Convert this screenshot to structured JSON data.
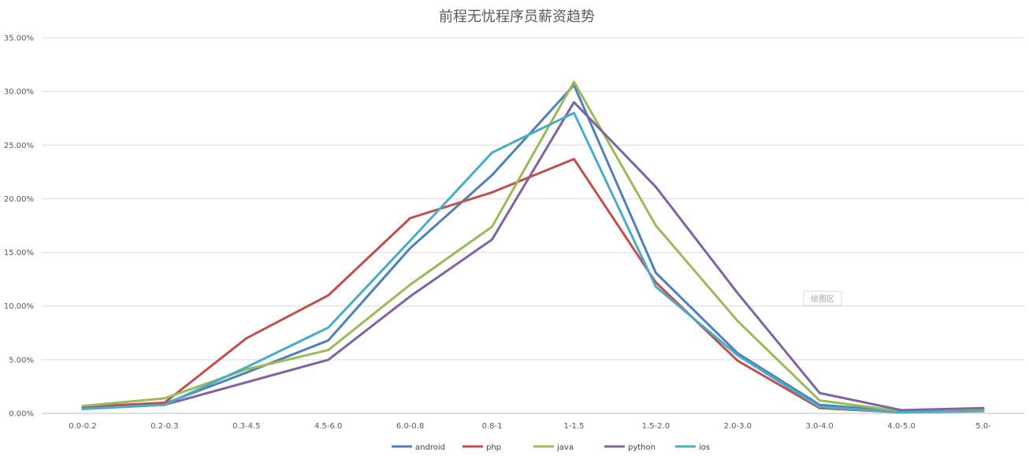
{
  "chart_data": {
    "type": "line",
    "title": "前程无忧程序员薪资趋势",
    "xlabel": "",
    "ylabel": "",
    "categories": [
      "0.0-0.2",
      "0.2-0.3",
      "0.3-4.5",
      "4.5-6.0",
      "6.0-0.8",
      "0.8-1",
      "1-1.5",
      "1.5-2.0",
      "2.0-3.0",
      "3.0-4.0",
      "4.0-5.0",
      "5.0-"
    ],
    "y_ticks": [
      "0.00%",
      "5.00%",
      "10.00%",
      "15.00%",
      "20.00%",
      "25.00%",
      "30.00%",
      "35.00%"
    ],
    "ylim": [
      0,
      35
    ],
    "y_unit": "%",
    "grid": true,
    "legend_position": "bottom",
    "plot_area_tag": "绘图区",
    "series": [
      {
        "name": "android",
        "color": "#4f81bd",
        "values": [
          0.5,
          0.9,
          3.8,
          6.8,
          15.4,
          22.2,
          30.6,
          13.1,
          5.6,
          0.8,
          0.2,
          0.4
        ]
      },
      {
        "name": "php",
        "color": "#c0504d",
        "values": [
          0.6,
          1.0,
          7.0,
          11.0,
          18.2,
          20.6,
          23.7,
          12.2,
          4.9,
          0.5,
          0.1,
          0.3
        ]
      },
      {
        "name": "java",
        "color": "#9bbb59",
        "values": [
          0.7,
          1.4,
          4.1,
          5.9,
          12.0,
          17.4,
          30.9,
          17.5,
          8.6,
          1.2,
          0.2,
          0.3
        ]
      },
      {
        "name": "python",
        "color": "#8064a2",
        "values": [
          0.5,
          0.8,
          2.9,
          5.0,
          10.9,
          16.2,
          29.0,
          21.1,
          11.2,
          1.9,
          0.3,
          0.5
        ]
      },
      {
        "name": "ios",
        "color": "#4bacc6",
        "values": [
          0.4,
          0.8,
          4.3,
          8.0,
          16.1,
          24.3,
          28.0,
          11.8,
          5.4,
          0.6,
          0.1,
          0.2
        ]
      }
    ]
  }
}
